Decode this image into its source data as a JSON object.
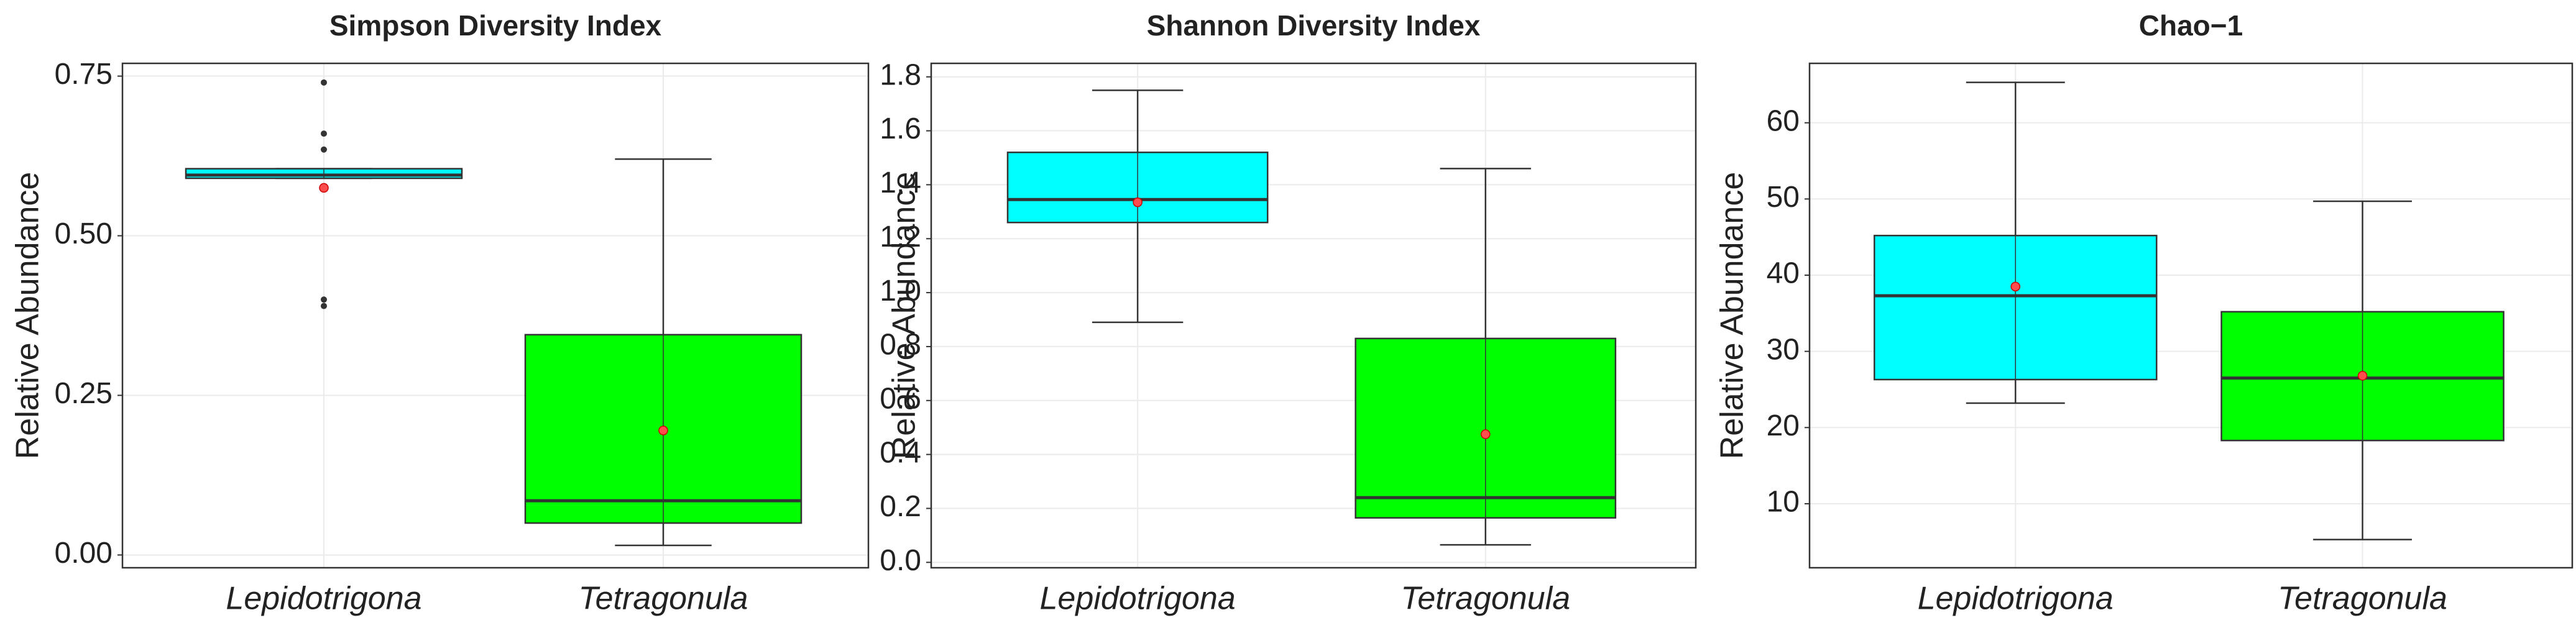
{
  "chart_data": [
    {
      "type": "box",
      "title": "Simpson Diversity Index",
      "ylabel": "Relative Abundance",
      "categories": [
        "Lepidotrigona",
        "Tetragonula"
      ],
      "ylim": [
        -0.02,
        0.77
      ],
      "yticks": [
        {
          "value": 0,
          "label": "0.00"
        },
        0.25,
        {
          "value": 0.5,
          "label": "0.50"
        },
        0.75
      ],
      "grid": true,
      "boxes": [
        {
          "color": "#00ffff",
          "whislo": 0.59,
          "q1": 0.59,
          "median": 0.595,
          "q3": 0.605,
          "whishi": 0.605,
          "mean": 0.575,
          "fliers": [
            0.74,
            0.66,
            0.635,
            0.4,
            0.39
          ]
        },
        {
          "color": "#00ff00",
          "whislo": 0.015,
          "q1": 0.05,
          "median": 0.085,
          "q3": 0.345,
          "whishi": 0.62,
          "mean": 0.195,
          "fliers": []
        }
      ]
    },
    {
      "type": "box",
      "title": "Shannon Diversity Index",
      "ylabel": "Relative Abundance",
      "categories": [
        "Lepidotrigona",
        "Tetragonula"
      ],
      "ylim": [
        -0.02,
        1.85
      ],
      "yticks": [
        {
          "value": 0,
          "label": "0.0"
        },
        0.2,
        0.4,
        0.6,
        0.8,
        {
          "value": 1,
          "label": "1.0"
        },
        1.2,
        1.4,
        1.6,
        1.8
      ],
      "grid": true,
      "boxes": [
        {
          "color": "#00ffff",
          "whislo": 0.89,
          "q1": 1.26,
          "median": 1.345,
          "q3": 1.52,
          "whishi": 1.75,
          "mean": 1.335,
          "fliers": []
        },
        {
          "color": "#00ff00",
          "whislo": 0.065,
          "q1": 0.165,
          "median": 0.24,
          "q3": 0.83,
          "whishi": 1.46,
          "mean": 0.475,
          "fliers": []
        }
      ]
    },
    {
      "type": "box",
      "title": "Chao−1",
      "ylabel": "Relative Abundance",
      "categories": [
        "Lepidotrigona",
        "Tetragonula"
      ],
      "ylim": [
        1.6,
        67.8
      ],
      "yticks": [
        10,
        20,
        30,
        40,
        50,
        60
      ],
      "grid": true,
      "boxes": [
        {
          "color": "#00ffff",
          "whislo": 23.2,
          "q1": 26.3,
          "median": 37.3,
          "q3": 45.2,
          "whishi": 65.3,
          "mean": 38.5,
          "fliers": []
        },
        {
          "color": "#00ff00",
          "whislo": 5.3,
          "q1": 18.3,
          "median": 26.5,
          "q3": 35.2,
          "whishi": 49.7,
          "mean": 26.8,
          "fliers": []
        }
      ]
    }
  ]
}
